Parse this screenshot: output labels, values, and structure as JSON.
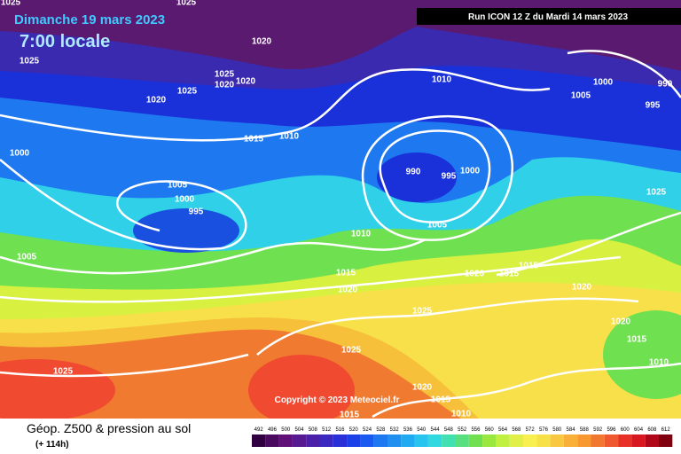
{
  "header": {
    "date": "Dimanche 19 mars 2023",
    "time": "7:00 locale",
    "run": "Run ICON 12 Z du Mardi 14 mars 2023"
  },
  "copyright": "Copyright © 2023 Meteociel.fr",
  "footer": {
    "title": "Géop. Z500 & pression au sol",
    "lead": "(+ 114h)"
  },
  "scale": [
    492,
    496,
    500,
    504,
    508,
    512,
    516,
    520,
    524,
    528,
    532,
    536,
    540,
    544,
    548,
    552,
    556,
    560,
    564,
    568,
    572,
    576,
    580,
    584,
    588,
    592,
    596,
    600,
    604,
    608,
    612
  ],
  "isobar_labels": [
    1025,
    1025,
    1020,
    1025,
    1025,
    1020,
    1020,
    1025,
    1020,
    1010,
    1005,
    1000,
    990,
    995,
    1015,
    1010,
    1000,
    990,
    995,
    1000,
    1005,
    1000,
    995,
    1025,
    1005,
    1010,
    1005,
    1015,
    1015,
    1020,
    1015,
    1020,
    1020,
    1025,
    1020,
    1015,
    1025,
    1010,
    1025,
    1020,
    1015,
    1015,
    1010
  ]
}
